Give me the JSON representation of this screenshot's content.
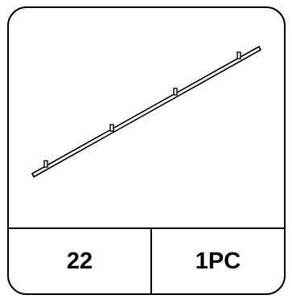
{
  "part": {
    "number": "22",
    "quantity": "1PC",
    "icon": "rail-with-brackets-icon"
  },
  "colors": {
    "stroke": "#000000",
    "background": "#ffffff"
  }
}
